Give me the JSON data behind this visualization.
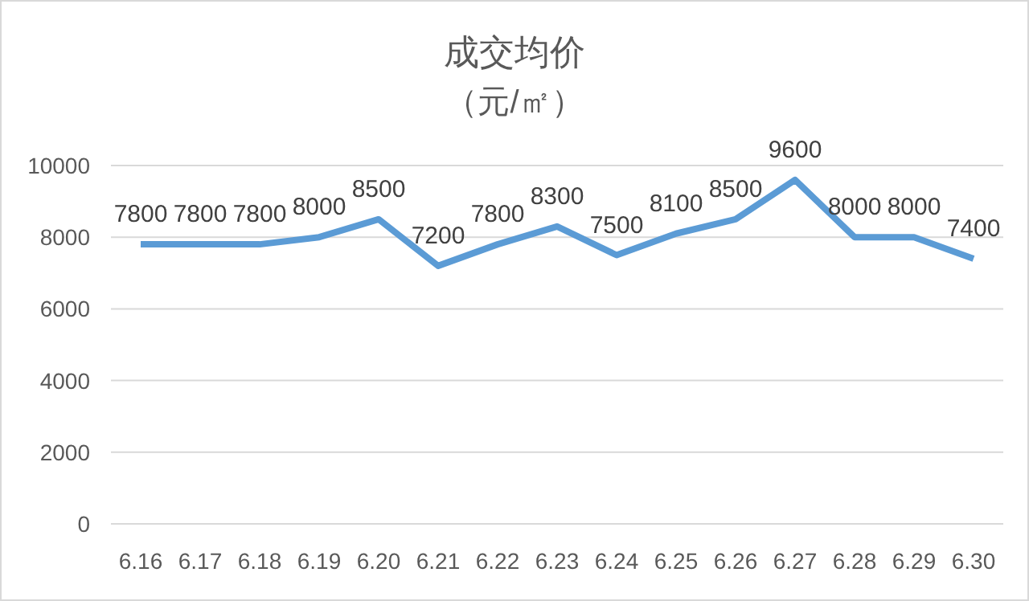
{
  "chart_data": {
    "type": "line",
    "title": "成交均价",
    "subtitle": "（元/㎡）",
    "categories": [
      "6.16",
      "6.17",
      "6.18",
      "6.19",
      "6.20",
      "6.21",
      "6.22",
      "6.23",
      "6.24",
      "6.25",
      "6.26",
      "6.27",
      "6.28",
      "6.29",
      "6.30"
    ],
    "series": [
      {
        "color": "#5b9bd5",
        "values": [
          7800,
          7800,
          7800,
          8000,
          8500,
          7200,
          7800,
          8300,
          7500,
          8100,
          8500,
          9600,
          8000,
          8000,
          7400
        ]
      }
    ],
    "ylim": [
      0,
      10000
    ],
    "yticks": [
      0,
      2000,
      4000,
      6000,
      8000,
      10000
    ],
    "grid": "y",
    "data_labels": true
  }
}
